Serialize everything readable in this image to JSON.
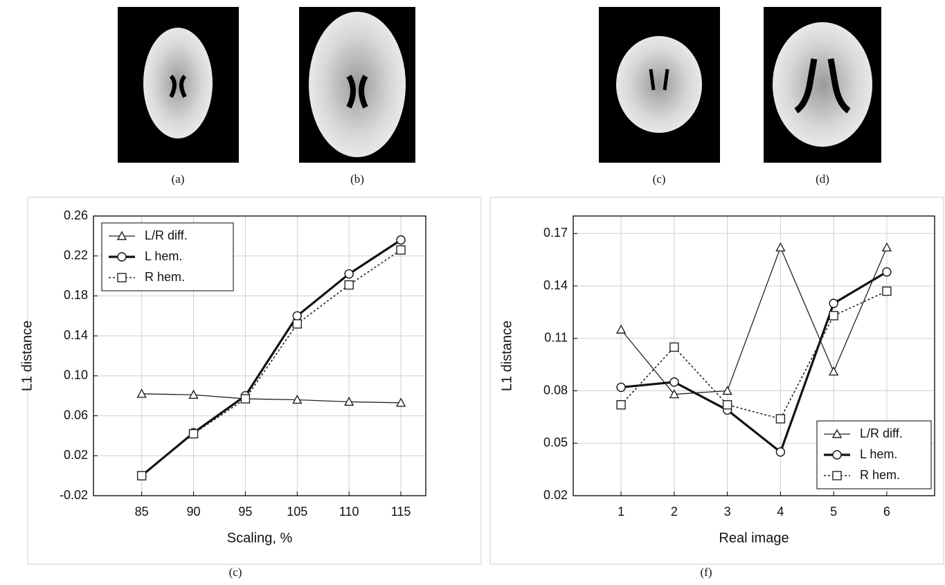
{
  "images": [
    {
      "caption": "(a)"
    },
    {
      "caption": "(b)"
    },
    {
      "caption": "(c)"
    },
    {
      "caption": "(d)"
    }
  ],
  "chart_data": [
    {
      "type": "line",
      "caption": "(c)",
      "x_label": "Scaling,  %",
      "y_label": "L1 distance",
      "categories": [
        "85",
        "90",
        "95",
        "105",
        "110",
        "115"
      ],
      "ylim": [
        -0.02,
        0.26
      ],
      "yticks": [
        -0.02,
        0.02,
        0.06,
        {
          "value": 0.1,
          "label": "0.10"
        },
        0.14,
        0.18,
        0.22,
        0.26
      ],
      "grid": true,
      "legend": "upper-left",
      "series": [
        {
          "name": "L/R diff.",
          "color": "#222222",
          "marker": "triangle",
          "style": "thin",
          "values": [
            0.082,
            0.081,
            0.077,
            0.076,
            0.074,
            0.073
          ]
        },
        {
          "name": "L  hem.",
          "color": "#111111",
          "marker": "circle",
          "style": "thick",
          "values": [
            0.0,
            0.043,
            0.08,
            0.16,
            0.202,
            0.236
          ]
        },
        {
          "name": "R  hem.",
          "color": "#222222",
          "marker": "square",
          "style": "dotted",
          "values": [
            0.0,
            0.042,
            0.077,
            0.152,
            0.191,
            0.226
          ]
        }
      ]
    },
    {
      "type": "line",
      "caption": "(f)",
      "x_label": "Real  image",
      "y_label": "L1 distance",
      "categories": [
        "1",
        "2",
        "3",
        "4",
        "5",
        "6"
      ],
      "ylim": [
        0.02,
        0.18
      ],
      "yticks": [
        0.02,
        0.05,
        0.08,
        0.11,
        0.14,
        0.17
      ],
      "grid": true,
      "legend": "lower-right",
      "series": [
        {
          "name": "L/R diff.",
          "color": "#222222",
          "marker": "triangle",
          "style": "thin",
          "values": [
            0.115,
            0.078,
            0.08,
            0.162,
            0.091,
            0.162
          ]
        },
        {
          "name": "L  hem.",
          "color": "#111111",
          "marker": "circle",
          "style": "thick",
          "values": [
            0.082,
            0.085,
            0.069,
            0.045,
            0.13,
            0.148
          ]
        },
        {
          "name": "R  hem.",
          "color": "#222222",
          "marker": "square",
          "style": "dotted",
          "values": [
            0.072,
            0.105,
            0.072,
            0.064,
            0.123,
            0.137
          ]
        }
      ]
    }
  ]
}
